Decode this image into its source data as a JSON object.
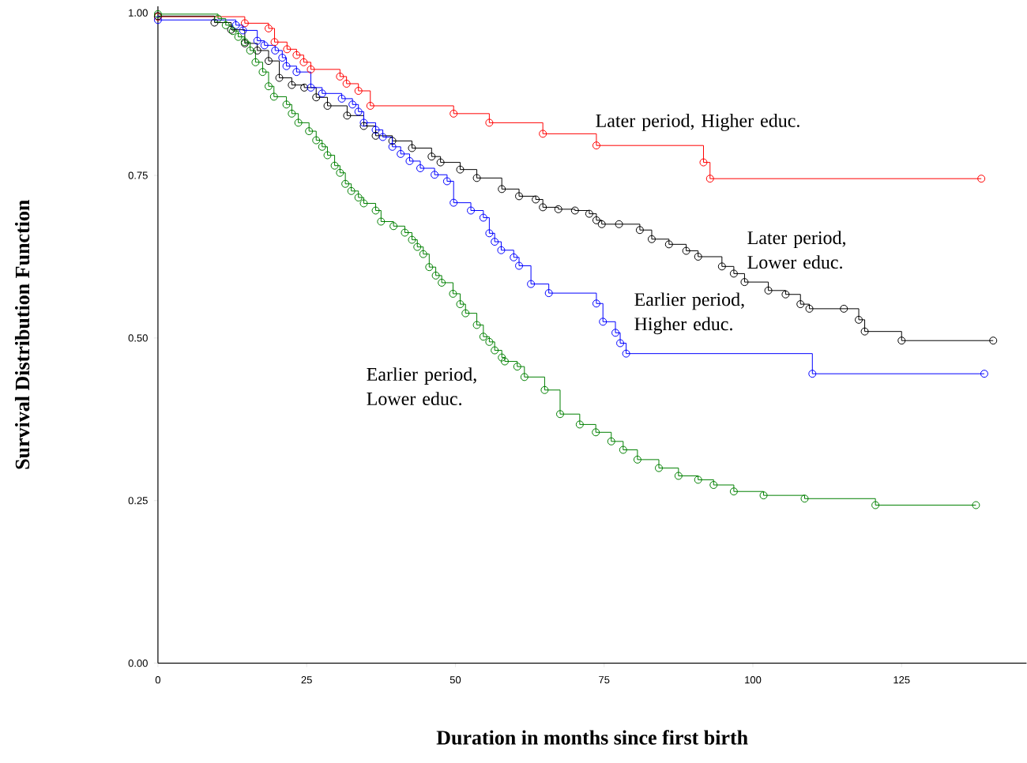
{
  "chart_data": {
    "type": "step",
    "xlabel": "Duration in months since first birth",
    "ylabel": "Survival Distribution Function",
    "xlim": [
      0,
      146
    ],
    "ylim": [
      0,
      1.01
    ],
    "xticks": [
      0,
      25,
      50,
      75,
      100,
      125
    ],
    "yticks": [
      {
        "value": 0,
        "label": "0.00"
      },
      {
        "value": 0.25,
        "label": "0.25"
      },
      {
        "value": 0.5,
        "label": "0.50"
      },
      {
        "value": 0.75,
        "label": "0.75"
      },
      {
        "value": 1,
        "label": "1.00"
      }
    ],
    "marker": "circle",
    "line_style": "solid",
    "series": [
      {
        "name": "Later period, Higher educ.",
        "color": "#ff0000",
        "x": [
          0,
          14.6,
          18.6,
          19.6,
          21.7,
          23.3,
          24.5,
          25.7,
          30.6,
          31.7,
          33.7,
          35.7,
          49.7,
          55.7,
          64.7,
          73.7,
          91.7,
          92.8,
          138.4
        ],
        "values": [
          0.994,
          0.984,
          0.976,
          0.955,
          0.944,
          0.935,
          0.924,
          0.913,
          0.902,
          0.891,
          0.88,
          0.857,
          0.845,
          0.831,
          0.814,
          0.796,
          0.77,
          0.745,
          0.745
        ]
      },
      {
        "name": "Later period, Lower educ.",
        "color": "#000000",
        "x": [
          0,
          9.5,
          12.3,
          14.6,
          16.7,
          18.6,
          20.4,
          22.5,
          24.6,
          26.6,
          28.5,
          31.8,
          34.6,
          36.6,
          39.4,
          42.7,
          46.0,
          47.5,
          50.8,
          53.6,
          57.8,
          60.7,
          63.5,
          64.7,
          67.3,
          70.1,
          72.5,
          73.7,
          74.6,
          77.5,
          81.0,
          83.0,
          85.9,
          88.8,
          90.8,
          94.8,
          96.8,
          98.6,
          102.6,
          105.5,
          108.0,
          109.5,
          115.3,
          117.8,
          118.8,
          125.0,
          140.4
        ],
        "values": [
          0.995,
          0.985,
          0.974,
          0.953,
          0.942,
          0.926,
          0.9,
          0.889,
          0.885,
          0.87,
          0.857,
          0.842,
          0.826,
          0.811,
          0.803,
          0.792,
          0.779,
          0.77,
          0.759,
          0.746,
          0.729,
          0.718,
          0.713,
          0.701,
          0.698,
          0.696,
          0.691,
          0.681,
          0.675,
          0.675,
          0.666,
          0.652,
          0.644,
          0.634,
          0.625,
          0.61,
          0.599,
          0.586,
          0.573,
          0.567,
          0.552,
          0.545,
          0.545,
          0.528,
          0.51,
          0.496,
          0.496
        ]
      },
      {
        "name": "Earlier period, Higher educ.",
        "color": "#0000ff",
        "x": [
          0,
          13.1,
          14.3,
          16.7,
          17.9,
          19.7,
          20.9,
          21.6,
          23.3,
          25.7,
          27.6,
          30.9,
          32.7,
          33.7,
          34.6,
          36.6,
          37.8,
          39.4,
          40.8,
          42.3,
          44.1,
          46.5,
          48.6,
          49.7,
          52.6,
          54.7,
          55.7,
          56.6,
          57.7,
          59.8,
          60.7,
          62.7,
          65.7,
          73.7,
          74.8,
          76.9,
          77.7,
          78.7,
          110.0,
          138.9
        ],
        "values": [
          0.989,
          0.981,
          0.973,
          0.957,
          0.95,
          0.942,
          0.931,
          0.918,
          0.909,
          0.885,
          0.876,
          0.868,
          0.859,
          0.848,
          0.831,
          0.82,
          0.809,
          0.794,
          0.783,
          0.772,
          0.761,
          0.751,
          0.741,
          0.708,
          0.696,
          0.685,
          0.661,
          0.648,
          0.635,
          0.624,
          0.611,
          0.583,
          0.569,
          0.553,
          0.525,
          0.508,
          0.492,
          0.476,
          0.445,
          0.445
        ]
      },
      {
        "name": "Earlier period, Lower educ.",
        "color": "#008000",
        "x": [
          0,
          10.1,
          11.4,
          12.6,
          13.5,
          14.6,
          15.5,
          16.4,
          17.6,
          18.6,
          19.5,
          21.6,
          22.5,
          23.6,
          25.4,
          26.6,
          27.6,
          28.5,
          29.7,
          30.6,
          31.5,
          32.5,
          33.7,
          34.6,
          36.6,
          37.5,
          39.6,
          41.5,
          42.7,
          43.6,
          44.6,
          45.6,
          46.7,
          47.7,
          49.6,
          50.8,
          51.7,
          53.6,
          54.7,
          55.7,
          56.6,
          57.8,
          58.3,
          60.4,
          61.6,
          65.0,
          67.6,
          70.9,
          73.6,
          76.2,
          78.2,
          80.6,
          84.2,
          87.5,
          90.8,
          93.4,
          96.8,
          101.8,
          108.7,
          120.6,
          137.5
        ],
        "values": [
          0.998,
          0.991,
          0.981,
          0.972,
          0.963,
          0.955,
          0.942,
          0.924,
          0.909,
          0.887,
          0.871,
          0.859,
          0.845,
          0.831,
          0.818,
          0.804,
          0.794,
          0.781,
          0.765,
          0.754,
          0.737,
          0.726,
          0.716,
          0.707,
          0.696,
          0.679,
          0.672,
          0.662,
          0.651,
          0.64,
          0.629,
          0.609,
          0.596,
          0.585,
          0.568,
          0.552,
          0.538,
          0.52,
          0.502,
          0.494,
          0.481,
          0.47,
          0.464,
          0.456,
          0.44,
          0.42,
          0.383,
          0.367,
          0.355,
          0.341,
          0.328,
          0.313,
          0.3,
          0.288,
          0.282,
          0.274,
          0.264,
          0.258,
          0.253,
          0.243,
          0.243
        ]
      }
    ]
  }
}
